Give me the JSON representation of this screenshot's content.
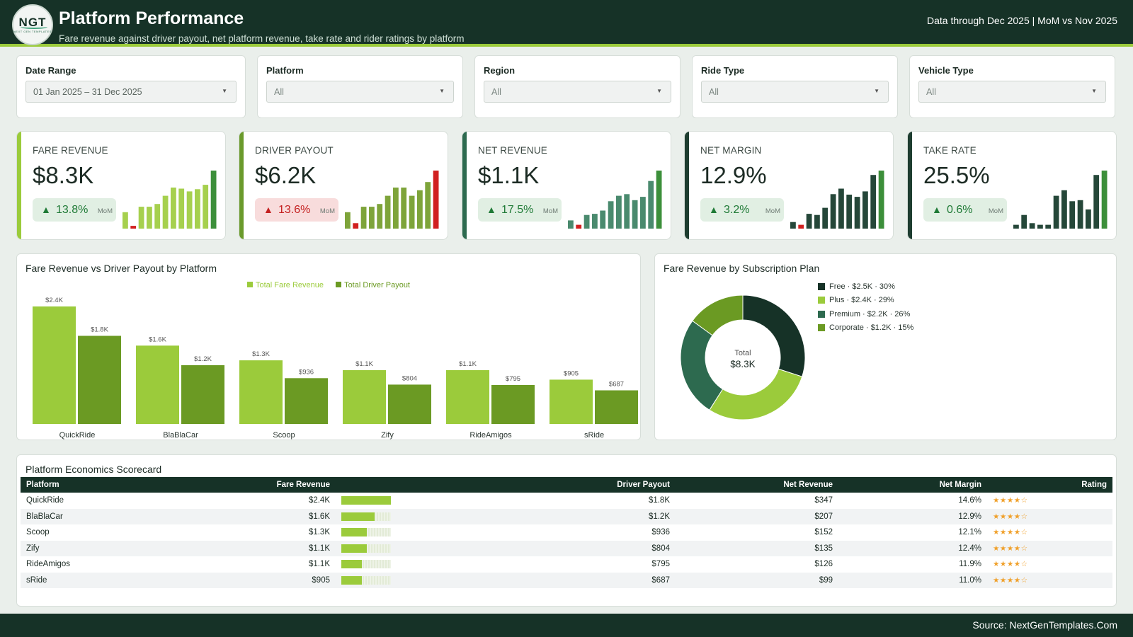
{
  "header": {
    "logo_text": "NGT",
    "logo_subtext": "NEXT GEN TEMPLATES",
    "title": "Platform Performance",
    "subtitle": "Fare revenue against driver payout, net platform revenue, take rate and rider ratings by platform",
    "data_note": "Data through Dec 2025 | MoM vs Nov 2025"
  },
  "filters": [
    {
      "label": "Date Range",
      "value": "01 Jan 2025 – 31 Dec 2025"
    },
    {
      "label": "Platform",
      "value": "All"
    },
    {
      "label": "Region",
      "value": "All"
    },
    {
      "label": "Ride Type",
      "value": "All"
    },
    {
      "label": "Vehicle Type",
      "value": "All"
    }
  ],
  "kpis": [
    {
      "label": "FARE REVENUE",
      "value": "$8.3K",
      "change": "13.8%",
      "direction": "up",
      "period": "MoM",
      "accent": "#9bcb3b",
      "bar_color": "#a6d04e",
      "last_color": "#3c8f3a",
      "spark": [
        3,
        0.5,
        4,
        4,
        4.5,
        6,
        7.5,
        7.3,
        6.8,
        7.2,
        8,
        10.6
      ]
    },
    {
      "label": "DRIVER PAYOUT",
      "value": "$6.2K",
      "change": "13.6%",
      "direction": "down",
      "period": "MoM",
      "accent": "#6a9a2b",
      "bar_color": "#7ea43a",
      "last_color": "#d12020",
      "spark": [
        3,
        1,
        4,
        4,
        4.5,
        6,
        7.5,
        7.5,
        6,
        7,
        8.5,
        10.6
      ]
    },
    {
      "label": "NET REVENUE",
      "value": "$1.1K",
      "change": "17.5%",
      "direction": "up",
      "period": "MoM",
      "accent": "#2d6a4f",
      "bar_color": "#4a8a6e",
      "last_color": "#3c8f3a",
      "spark": [
        1.5,
        0.7,
        2.5,
        2.7,
        3.3,
        5,
        6,
        6.3,
        5.2,
        5.8,
        8.7,
        10.6
      ]
    },
    {
      "label": "NET MARGIN",
      "value": "12.9%",
      "change": "3.2%",
      "direction": "up",
      "period": "MoM",
      "accent": "#1e3d30",
      "bar_color": "#254739",
      "last_color": "#3c8f3a",
      "spark": [
        1.2,
        0.7,
        2.7,
        2.5,
        3.8,
        6.3,
        7.3,
        6.2,
        5.8,
        6.8,
        9.8,
        10.6
      ]
    },
    {
      "label": "TAKE RATE",
      "value": "25.5%",
      "change": "0.6%",
      "direction": "up",
      "period": "MoM",
      "accent": "#1e3d30",
      "bar_color": "#254739",
      "last_color": "#3c8f3a",
      "spark": [
        0.7,
        2.5,
        1,
        0.7,
        0.7,
        6,
        7,
        5,
        5.2,
        3.5,
        9.8,
        10.6
      ]
    }
  ],
  "bar_panel": {
    "title": "Fare Revenue vs Driver Payout by Platform"
  },
  "chart_data": [
    {
      "type": "bar",
      "title": "Fare Revenue vs Driver Payout by Platform",
      "categories": [
        "QuickRide",
        "BlaBlaCar",
        "Scoop",
        "Zify",
        "RideAmigos",
        "sRide"
      ],
      "series": [
        {
          "name": "Total Fare Revenue",
          "color": "#9bcb3b",
          "values": [
            2400,
            1600,
            1300,
            1100,
            1100,
            905
          ],
          "labels": [
            "$2.4K",
            "$1.6K",
            "$1.3K",
            "$1.1K",
            "$1.1K",
            "$905"
          ]
        },
        {
          "name": "Total Driver Payout",
          "color": "#6b9a23",
          "values": [
            1800,
            1200,
            936,
            804,
            795,
            687
          ],
          "labels": [
            "$1.8K",
            "$1.2K",
            "$936",
            "$804",
            "$795",
            "$687"
          ]
        }
      ],
      "legend_position": "top-center"
    },
    {
      "type": "pie",
      "title": "Fare Revenue by Subscription Plan",
      "center_label": "Total",
      "center_value": "$8.3K",
      "slices": [
        {
          "label": "Free · $2.5K · 30%",
          "value": 30,
          "color": "#163227"
        },
        {
          "label": "Plus · $2.4K · 29%",
          "value": 29,
          "color": "#9bcb3b"
        },
        {
          "label": "Premium · $2.2K · 26%",
          "value": 26,
          "color": "#2d6a4f"
        },
        {
          "label": "Corporate · $1.2K · 15%",
          "value": 15,
          "color": "#6b9a23"
        }
      ],
      "legend_position": "right"
    }
  ],
  "scorecard": {
    "title": "Platform Economics Scorecard",
    "columns": [
      "Platform",
      "Fare Revenue",
      "Driver Payout",
      "Net Revenue",
      "Net Margin",
      "Rating"
    ],
    "rows": [
      {
        "platform": "QuickRide",
        "fare": "$2.4K",
        "fare_share": 1.0,
        "payout": "$1.8K",
        "net": "$347",
        "margin": "14.6%",
        "rating": "★★★★☆"
      },
      {
        "platform": "BlaBlaCar",
        "fare": "$1.6K",
        "fare_share": 0.67,
        "payout": "$1.2K",
        "net": "$207",
        "margin": "12.9%",
        "rating": "★★★★☆"
      },
      {
        "platform": "Scoop",
        "fare": "$1.3K",
        "fare_share": 0.52,
        "payout": "$936",
        "net": "$152",
        "margin": "12.1%",
        "rating": "★★★★☆"
      },
      {
        "platform": "Zify",
        "fare": "$1.1K",
        "fare_share": 0.52,
        "payout": "$804",
        "net": "$135",
        "margin": "12.4%",
        "rating": "★★★★☆"
      },
      {
        "platform": "RideAmigos",
        "fare": "$1.1K",
        "fare_share": 0.42,
        "payout": "$795",
        "net": "$126",
        "margin": "11.9%",
        "rating": "★★★★☆"
      },
      {
        "platform": "sRide",
        "fare": "$905",
        "fare_share": 0.42,
        "payout": "$687",
        "net": "$99",
        "margin": "11.0%",
        "rating": "★★★★☆"
      }
    ]
  },
  "footer": {
    "source": "Source: NextGenTemplates.Com"
  }
}
